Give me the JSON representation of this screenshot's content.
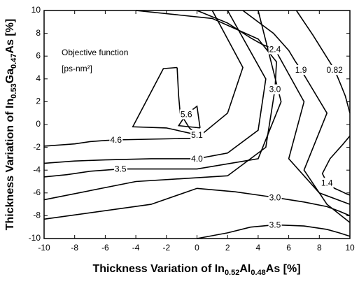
{
  "chart_data": {
    "type": "contour",
    "x_label": [
      "Thickness Variation of In",
      "0.52",
      "Al",
      "0.48",
      "As [%]"
    ],
    "y_label": [
      "Thickness Variation of In",
      "0.53",
      "Ga",
      "0.47",
      "As [%]"
    ],
    "annotation": [
      "Objective function",
      "[ps-nm²]"
    ],
    "xlim": [
      -10,
      10
    ],
    "ylim": [
      -10,
      10
    ],
    "xticks": [
      -10,
      -8,
      -6,
      -4,
      -2,
      0,
      2,
      4,
      6,
      8,
      10
    ],
    "yticks": [
      -10,
      -8,
      -6,
      -4,
      -2,
      0,
      2,
      4,
      6,
      8,
      10
    ],
    "color": "#000000",
    "contours": [
      {
        "level": 5.6,
        "x": [
          0.2,
          -1.2,
          -0.7,
          0,
          0.2
        ],
        "y": [
          -0.3,
          -0.1,
          0.9,
          1.6,
          -0.3
        ]
      },
      {
        "level": 5.1,
        "x": [
          -1.3,
          -1.2,
          -1.1,
          -0.5,
          0,
          -2,
          -4.2,
          -2.2,
          -1.3
        ],
        "y": [
          5.0,
          2.5,
          1.0,
          -0.3,
          -0.9,
          -0.3,
          -0.2,
          4.9,
          5.0
        ]
      },
      {
        "level": 4.6,
        "x": [
          -10,
          -8,
          -7,
          -6,
          -5.3,
          0,
          2,
          3,
          1
        ],
        "y": [
          -1.9,
          -1.7,
          -1.5,
          -1.4,
          -1.35,
          -1.2,
          1,
          5,
          10
        ]
      },
      {
        "level": {
          "value": 4,
          "label": "4.0"
        },
        "x": [
          -10,
          -8,
          -6,
          -3,
          0,
          2,
          4,
          4.5,
          2
        ],
        "y": [
          -3.4,
          -3.2,
          -3.1,
          -3.0,
          -3.0,
          -2.5,
          -0.5,
          4,
          10
        ]
      },
      {
        "level": 3.5,
        "x": [
          -10,
          -8.5,
          -7,
          -6,
          -5,
          0,
          4,
          5.5,
          4
        ],
        "y": [
          -4.6,
          -4.4,
          -4.1,
          -4.0,
          -3.9,
          -3.9,
          -3,
          2,
          10
        ]
      },
      {
        "level": {
          "value": 3,
          "label": "3.0"
        },
        "x": [
          -10,
          -4,
          2,
          4.5,
          5.1,
          5.2,
          4,
          1,
          -4
        ],
        "y": [
          -6.6,
          -5,
          -4.5,
          -2,
          3.1,
          5.5,
          7.5,
          9.3,
          10
        ]
      },
      {
        "level": {
          "value": 3,
          "label": "3.0"
        },
        "x": [
          -10,
          -3,
          0,
          2.5,
          5.1,
          7,
          8.5,
          9.3,
          10
        ],
        "y": [
          -8.3,
          -7,
          -5.6,
          -5.9,
          -6.4,
          -6.8,
          -7.2,
          -7.6,
          -8
        ]
      },
      {
        "level": 3.5,
        "x": [
          0,
          2,
          3.5,
          4.3,
          5.1,
          7,
          8.5,
          9.3,
          10
        ],
        "y": [
          -10,
          -9.5,
          -9,
          -8.9,
          -8.8,
          -8.9,
          -9.2,
          -9.5,
          -9.8
        ]
      },
      {
        "level": 2.4,
        "x": [
          0,
          2,
          3.5,
          4.3,
          5.1,
          7,
          6,
          8,
          10
        ],
        "y": [
          10,
          8.9,
          7.6,
          7,
          6.6,
          2,
          -3,
          -6,
          -7
        ]
      },
      {
        "level": 1.9,
        "x": [
          3,
          5,
          6,
          6.4,
          6.8,
          8.5,
          7,
          8.5,
          10
        ],
        "y": [
          10,
          8,
          6.5,
          5.6,
          4.8,
          1,
          -4,
          -7,
          -8.6
        ]
      },
      {
        "level": 0.82,
        "x": [
          6.5,
          7,
          7.6,
          8.3,
          9,
          9.4,
          9.7,
          9.9,
          10
        ],
        "y": [
          10,
          9,
          7.8,
          6.3,
          4.8,
          3.5,
          2.5,
          1.5,
          1
        ]
      },
      {
        "level": 1.4,
        "x": [
          10,
          9.5,
          8.7,
          8.2,
          8.5,
          9,
          9.5,
          9.8,
          10
        ],
        "y": [
          -1,
          -1.8,
          -3,
          -4.3,
          -5.1,
          -5.6,
          -5.9,
          -6.1,
          -6.2
        ]
      }
    ]
  }
}
